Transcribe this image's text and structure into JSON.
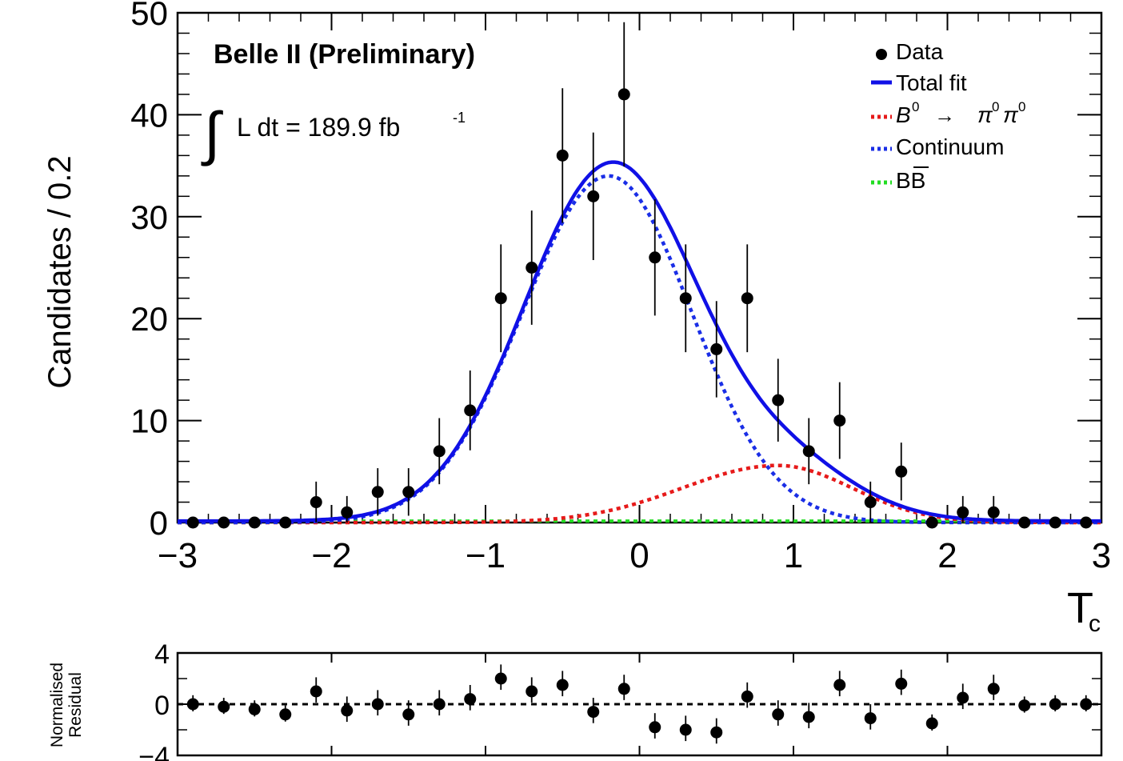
{
  "chart_data": [
    {
      "type": "scatter",
      "title": "Belle II (Preliminary)",
      "luminosity_label": "L dt = 189.9 fb",
      "luminosity_exponent": "-1",
      "xlabel": "T",
      "xlabel_subscript": "c",
      "ylabel": "Candidates / 0.2",
      "xlim": [
        -3,
        3
      ],
      "ylim": [
        0,
        50
      ],
      "x_ticks": [
        -3,
        -2,
        -1,
        0,
        1,
        2,
        3
      ],
      "x_tick_labels": [
        "−3",
        "−2",
        "−1",
        "0",
        "1",
        "2",
        "3"
      ],
      "y_ticks": [
        0,
        10,
        20,
        30,
        40,
        50
      ],
      "y_tick_labels": [
        "0",
        "10",
        "20",
        "30",
        "40",
        "50"
      ],
      "legend_position": "top-right",
      "legend": [
        {
          "key": "data",
          "label": "Data",
          "style": "marker",
          "color": "#000000"
        },
        {
          "key": "total",
          "label": "Total fit",
          "style": "solid",
          "color": "#1010e6"
        },
        {
          "key": "signal",
          "label": "B0 → π0π0",
          "style": "dotted",
          "color": "#e61a1a"
        },
        {
          "key": "continuum",
          "label": "Continuum",
          "style": "dotted",
          "color": "#1a2ee6"
        },
        {
          "key": "bbbar",
          "label": "BB",
          "style": "dotted",
          "color": "#22dd22"
        }
      ],
      "data": {
        "x": [
          -2.9,
          -2.7,
          -2.5,
          -2.3,
          -2.1,
          -1.9,
          -1.7,
          -1.5,
          -1.3,
          -1.1,
          -0.9,
          -0.7,
          -0.5,
          -0.3,
          -0.1,
          0.1,
          0.3,
          0.5,
          0.7,
          0.9,
          1.1,
          1.3,
          1.5,
          1.7,
          1.9,
          2.1,
          2.3,
          2.5,
          2.7,
          2.9
        ],
        "y": [
          0,
          0,
          0,
          0,
          2,
          1,
          3,
          3,
          7,
          11,
          22,
          25,
          36,
          32,
          42,
          26,
          22,
          17,
          22,
          12,
          7,
          10,
          2,
          5,
          0,
          1,
          1,
          0,
          0,
          0
        ]
      },
      "fit": {
        "total_peak": {
          "x": -0.15,
          "y": 37
        },
        "continuum_peak": {
          "x": -0.2,
          "y": 34
        },
        "signal_peak": {
          "x": 0.9,
          "y": 5.6
        },
        "bbbar_level": 0.15
      }
    },
    {
      "type": "scatter",
      "ylabel": "Normalised Residual",
      "ylim": [
        -4,
        4
      ],
      "y_tick_labels": [
        "4",
        "0",
        "−4"
      ],
      "x": [
        -2.9,
        -2.7,
        -2.5,
        -2.3,
        -2.1,
        -1.9,
        -1.7,
        -1.5,
        -1.3,
        -1.1,
        -0.9,
        -0.7,
        -0.5,
        -0.3,
        -0.1,
        0.1,
        0.3,
        0.5,
        0.7,
        0.9,
        1.1,
        1.3,
        1.5,
        1.7,
        1.9,
        2.1,
        2.3,
        2.5,
        2.7,
        2.9
      ],
      "values": [
        0,
        -0.2,
        -0.4,
        -0.8,
        1.0,
        -0.5,
        0,
        -0.8,
        0,
        0.4,
        2.0,
        1.0,
        1.5,
        -0.6,
        1.2,
        -1.8,
        -2.0,
        -2.2,
        0.6,
        -0.8,
        -1.0,
        1.5,
        -1.1,
        1.6,
        -1.5,
        0.5,
        1.2,
        -0.1,
        0,
        0
      ]
    }
  ]
}
